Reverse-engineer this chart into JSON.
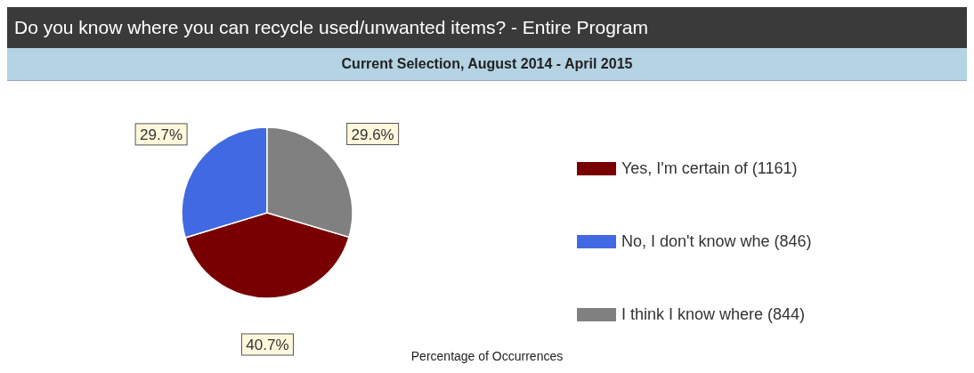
{
  "chart_data": {
    "type": "pie",
    "title": "Do you know where you can recycle used/unwanted items? - Entire Program",
    "subtitle": "Current Selection, August 2014 - April 2015",
    "xlabel": "Percentage of Occurrences",
    "categories": [
      "Yes, I'm certain of  (1161)",
      "No, I don't know whe (846)",
      "I think I know where (844)"
    ],
    "values": [
      40.7,
      29.7,
      29.6
    ],
    "colors": [
      "#780000",
      "#4169e1",
      "#808080"
    ],
    "value_labels": [
      "40.7%",
      "29.7%",
      "29.6%"
    ],
    "legend": "right"
  }
}
